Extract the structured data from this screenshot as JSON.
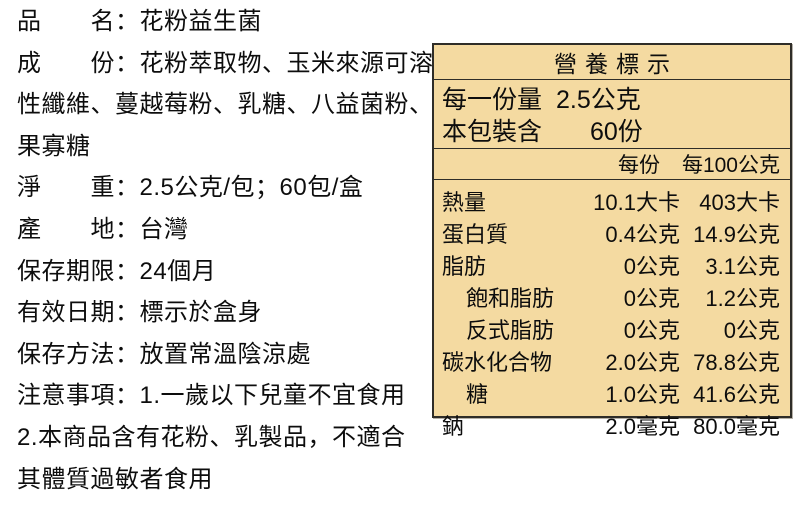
{
  "product_info": {
    "lines": [
      "品　　名：花粉益生菌",
      "成　　份：花粉萃取物、玉米來源可溶",
      "性纖維、蔓越莓粉、乳糖、八益菌粉、",
      "果寡糖",
      "淨　　重：2.5公克/包；60包/盒",
      "產　　地：台灣",
      "保存期限：24個月",
      "有效日期：標示於盒身",
      "保存方法：放置常溫陰涼處",
      "注意事項：1.一歲以下兒童不宜食用",
      "2.本商品含有花粉、乳製品，不適合",
      "其體質過敏者食用"
    ]
  },
  "nutrition_label": {
    "title": "營養標示",
    "panel_bg_color": "#f4daa1",
    "panel_border_color": "#2f2d28",
    "serving": {
      "size_label": "每一份量",
      "size_value": "2.5公克",
      "count_label": "本包裝含",
      "count_value": "60份"
    },
    "columns": {
      "per_serving": "每份",
      "per_100g": "每100公克"
    },
    "rows": [
      {
        "name": "熱量",
        "indent": false,
        "per_serving": "10.1大卡",
        "per_100g": "403大卡"
      },
      {
        "name": "蛋白質",
        "indent": false,
        "per_serving": "0.4公克",
        "per_100g": "14.9公克"
      },
      {
        "name": "脂肪",
        "indent": false,
        "per_serving": "0公克",
        "per_100g": "3.1公克"
      },
      {
        "name": "飽和脂肪",
        "indent": true,
        "per_serving": "0公克",
        "per_100g": "1.2公克"
      },
      {
        "name": "反式脂肪",
        "indent": true,
        "per_serving": "0公克",
        "per_100g": "0公克"
      },
      {
        "name": "碳水化合物",
        "indent": false,
        "per_serving": "2.0公克",
        "per_100g": "78.8公克"
      },
      {
        "name": "糖",
        "indent": true,
        "per_serving": "1.0公克",
        "per_100g": "41.6公克"
      },
      {
        "name": "鈉",
        "indent": false,
        "per_serving": "2.0毫克",
        "per_100g": "80.0毫克"
      }
    ]
  }
}
